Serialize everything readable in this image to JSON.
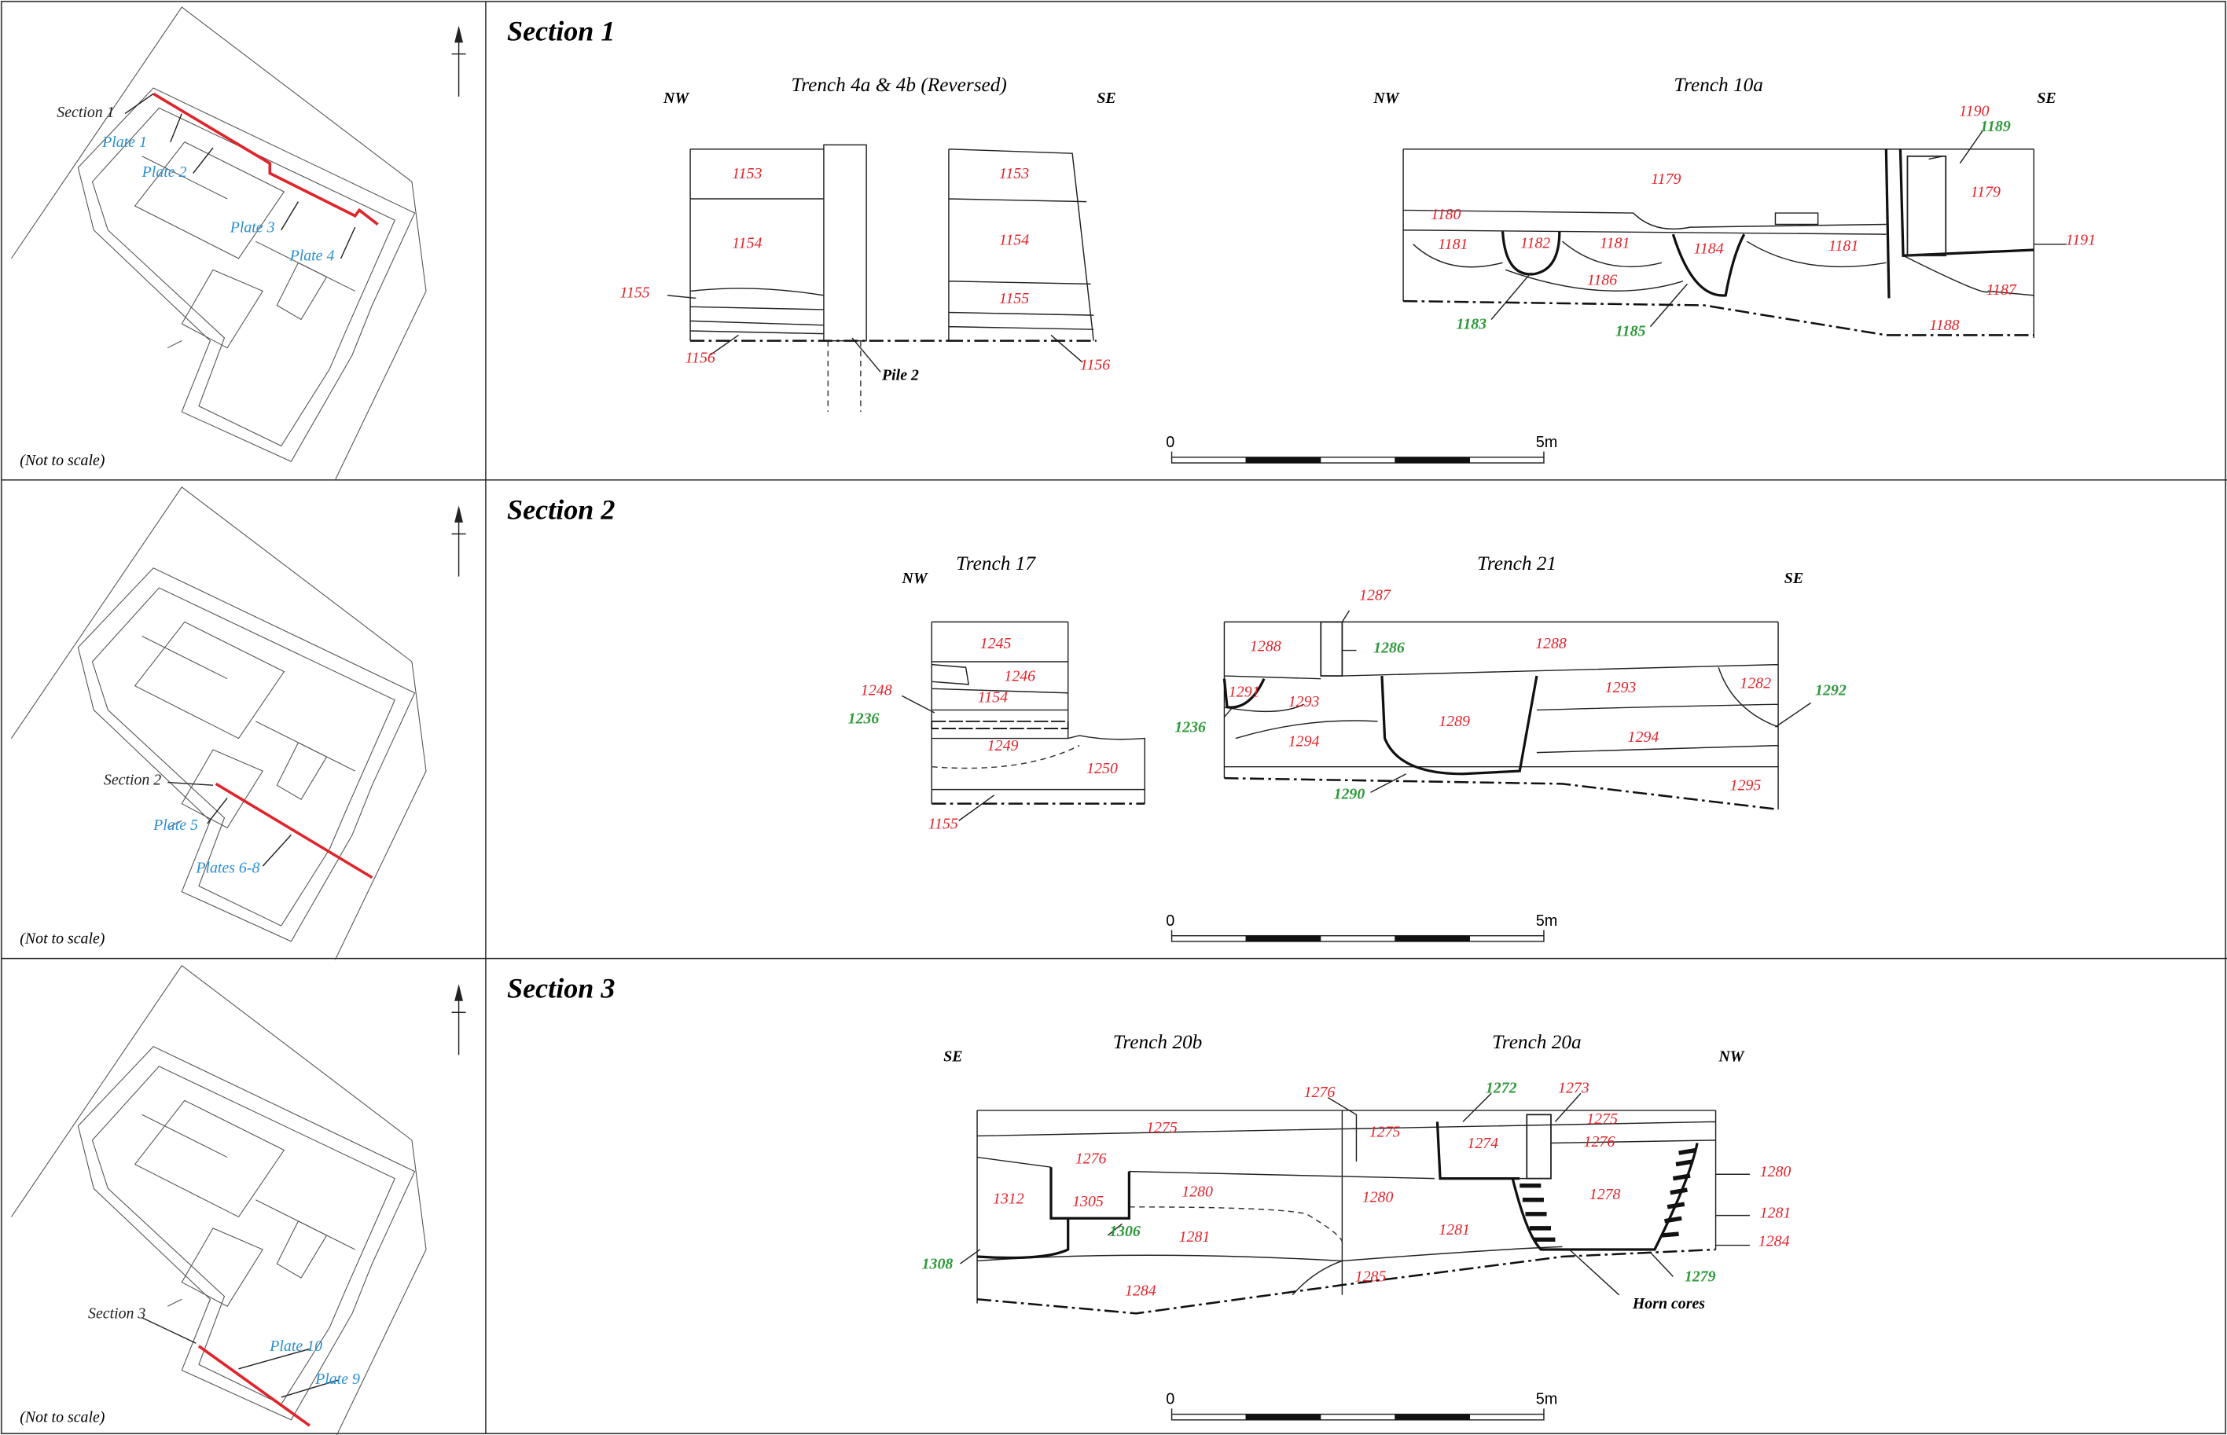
{
  "sections": [
    {
      "title": "Section 1",
      "not_to_scale": "(Not to scale)",
      "plan_labels": [
        "Section 1",
        "Plate 1",
        "Plate 2",
        "Plate 3",
        "Plate 4"
      ],
      "trenches": [
        "Trench 4a & 4b (Reversed)",
        "Trench 10a"
      ],
      "directions": [
        "NW",
        "SE",
        "NW",
        "SE"
      ],
      "contexts": [
        "1153",
        "1154",
        "1155",
        "1156",
        "1153",
        "1154",
        "1155",
        "1156",
        "1179",
        "1180",
        "1181",
        "1182",
        "1181",
        "1184",
        "1181",
        "1186",
        "1179",
        "1190",
        "1191",
        "1187",
        "1188"
      ],
      "cuts": [
        "1189",
        "1183",
        "1185"
      ],
      "annotations": [
        "Pile 2"
      ],
      "scale": [
        "0",
        "5m"
      ]
    },
    {
      "title": "Section 2",
      "not_to_scale": "(Not to scale)",
      "plan_labels": [
        "Section 2",
        "Plate 5",
        "Plates 6-8"
      ],
      "trenches": [
        "Trench 17",
        "Trench 21"
      ],
      "directions": [
        "NW",
        "SE"
      ],
      "contexts": [
        "1287",
        "1245",
        "1246",
        "1248",
        "1154",
        "1249",
        "1250",
        "1155",
        "1288",
        "1288",
        "1291",
        "1293",
        "1294",
        "1289",
        "1293",
        "1294",
        "1282",
        "1295"
      ],
      "cuts": [
        "1286",
        "1236",
        "1236",
        "1290",
        "1292"
      ],
      "annotations": [],
      "scale": [
        "0",
        "5m"
      ]
    },
    {
      "title": "Section 3",
      "not_to_scale": "(Not to scale)",
      "plan_labels": [
        "Section 3",
        "Plate 10",
        "Plate 9"
      ],
      "trenches": [
        "Trench 20b",
        "Trench 20a"
      ],
      "directions": [
        "SE",
        "NW"
      ],
      "contexts": [
        "1276",
        "1273",
        "1275",
        "1275",
        "1275",
        "1274",
        "1276",
        "1276",
        "1280",
        "1312",
        "1305",
        "1280",
        "1280",
        "1278",
        "1281",
        "1281",
        "1281",
        "1284",
        "1284",
        "1285"
      ],
      "cuts": [
        "1272",
        "1306",
        "1308",
        "1279"
      ],
      "annotations": [
        "Horn cores"
      ],
      "scale": [
        "0",
        "5m"
      ]
    }
  ]
}
